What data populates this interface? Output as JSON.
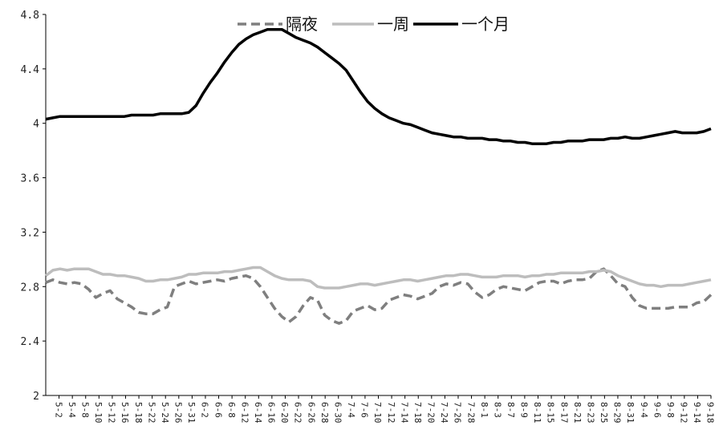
{
  "chart_data": {
    "type": "line",
    "ylim": [
      2,
      4.8
    ],
    "yticks": [
      "2",
      "2.4",
      "2.8",
      "3.2",
      "3.6",
      "4",
      "4.4",
      "4.8"
    ],
    "grid": false,
    "legend_position": "top-center",
    "x_tick_labels": [
      "5-2",
      "5-4",
      "5-8",
      "5-10",
      "5-12",
      "5-16",
      "5-18",
      "5-22",
      "5-24",
      "5-26",
      "5-31",
      "6-2",
      "6-6",
      "6-8",
      "6-12",
      "6-14",
      "6-16",
      "6-20",
      "6-22",
      "6-26",
      "6-28",
      "6-30",
      "7-4",
      "7-6",
      "7-10",
      "7-12",
      "7-14",
      "7-18",
      "7-20",
      "7-24",
      "7-26",
      "7-28",
      "8-1",
      "8-3",
      "8-7",
      "8-9",
      "8-11",
      "8-15",
      "8-17",
      "8-21",
      "8-23",
      "8-25",
      "8-29",
      "8-31",
      "9-4",
      "9-6",
      "9-8",
      "9-12",
      "9-14",
      "9-18"
    ],
    "series": [
      {
        "name": "隔夜",
        "color": "#7f7f7f",
        "style": "dashed",
        "values": [
          2.83,
          2.85,
          2.83,
          2.82,
          2.83,
          2.82,
          2.78,
          2.72,
          2.75,
          2.77,
          2.71,
          2.68,
          2.65,
          2.61,
          2.6,
          2.6,
          2.63,
          2.65,
          2.8,
          2.82,
          2.84,
          2.82,
          2.83,
          2.84,
          2.85,
          2.84,
          2.86,
          2.87,
          2.88,
          2.86,
          2.8,
          2.72,
          2.64,
          2.58,
          2.54,
          2.58,
          2.66,
          2.72,
          2.7,
          2.59,
          2.55,
          2.53,
          2.55,
          2.62,
          2.64,
          2.66,
          2.63,
          2.64,
          2.7,
          2.72,
          2.74,
          2.73,
          2.71,
          2.73,
          2.75,
          2.8,
          2.82,
          2.81,
          2.83,
          2.82,
          2.76,
          2.72,
          2.74,
          2.78,
          2.8,
          2.79,
          2.78,
          2.77,
          2.8,
          2.83,
          2.84,
          2.84,
          2.82,
          2.84,
          2.85,
          2.85,
          2.86,
          2.91,
          2.93,
          2.88,
          2.82,
          2.8,
          2.72,
          2.66,
          2.64,
          2.64,
          2.64,
          2.64,
          2.65,
          2.65,
          2.65,
          2.68,
          2.69,
          2.74
        ]
      },
      {
        "name": "一周",
        "color": "#bdbdbd",
        "style": "solid",
        "values": [
          2.88,
          2.92,
          2.93,
          2.92,
          2.93,
          2.93,
          2.93,
          2.91,
          2.89,
          2.89,
          2.88,
          2.88,
          2.87,
          2.86,
          2.84,
          2.84,
          2.85,
          2.85,
          2.86,
          2.87,
          2.89,
          2.89,
          2.9,
          2.9,
          2.9,
          2.91,
          2.91,
          2.92,
          2.93,
          2.94,
          2.94,
          2.91,
          2.88,
          2.86,
          2.85,
          2.85,
          2.85,
          2.84,
          2.8,
          2.79,
          2.79,
          2.79,
          2.8,
          2.81,
          2.82,
          2.82,
          2.81,
          2.82,
          2.83,
          2.84,
          2.85,
          2.85,
          2.84,
          2.85,
          2.86,
          2.87,
          2.88,
          2.88,
          2.89,
          2.89,
          2.88,
          2.87,
          2.87,
          2.87,
          2.88,
          2.88,
          2.88,
          2.87,
          2.88,
          2.88,
          2.89,
          2.89,
          2.9,
          2.9,
          2.9,
          2.9,
          2.91,
          2.91,
          2.92,
          2.91,
          2.88,
          2.86,
          2.84,
          2.82,
          2.81,
          2.81,
          2.8,
          2.81,
          2.81,
          2.81,
          2.82,
          2.83,
          2.84,
          2.85
        ]
      },
      {
        "name": "一个月",
        "color": "#000000",
        "style": "solid",
        "values": [
          4.03,
          4.04,
          4.05,
          4.05,
          4.05,
          4.05,
          4.05,
          4.05,
          4.05,
          4.05,
          4.05,
          4.05,
          4.06,
          4.06,
          4.06,
          4.06,
          4.07,
          4.07,
          4.07,
          4.07,
          4.08,
          4.13,
          4.22,
          4.3,
          4.37,
          4.45,
          4.52,
          4.58,
          4.62,
          4.65,
          4.67,
          4.69,
          4.69,
          4.69,
          4.66,
          4.63,
          4.61,
          4.59,
          4.56,
          4.52,
          4.48,
          4.44,
          4.39,
          4.31,
          4.23,
          4.16,
          4.11,
          4.07,
          4.04,
          4.02,
          4.0,
          3.99,
          3.97,
          3.95,
          3.93,
          3.92,
          3.91,
          3.9,
          3.9,
          3.89,
          3.89,
          3.89,
          3.88,
          3.88,
          3.87,
          3.87,
          3.86,
          3.86,
          3.85,
          3.85,
          3.85,
          3.86,
          3.86,
          3.87,
          3.87,
          3.87,
          3.88,
          3.88,
          3.88,
          3.89,
          3.89,
          3.9,
          3.89,
          3.89,
          3.9,
          3.91,
          3.92,
          3.93,
          3.94,
          3.93,
          3.93,
          3.93,
          3.94,
          3.96
        ]
      }
    ]
  }
}
